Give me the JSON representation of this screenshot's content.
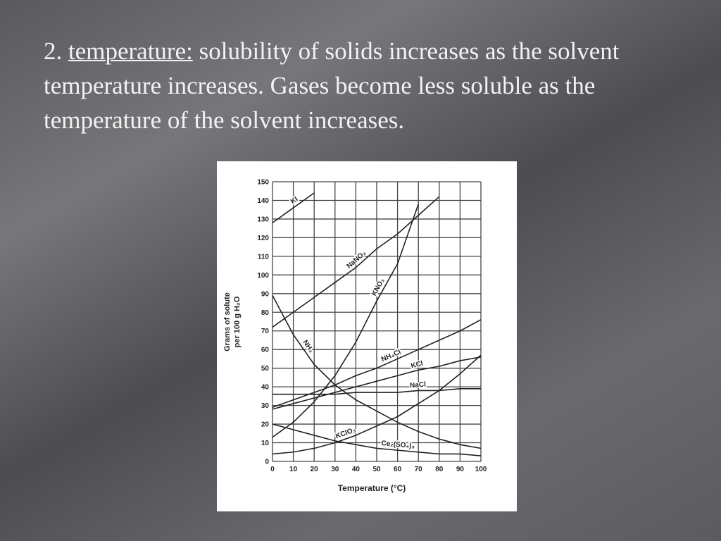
{
  "slide": {
    "number": "2.",
    "term": "temperature:",
    "body": "solubility of solids increases as the solvent temperature increases. Gases become less soluble as the temperature of the solvent increases."
  },
  "chart_data": {
    "type": "line",
    "x_label": "Temperature (°C)",
    "y_label": [
      "Grams of solute",
      "per 100 g H₂O"
    ],
    "x": [
      0,
      10,
      20,
      30,
      40,
      50,
      60,
      70,
      80,
      90,
      100
    ],
    "xlim": [
      0,
      100
    ],
    "xticks": [
      0,
      10,
      20,
      30,
      40,
      50,
      60,
      70,
      80,
      90,
      100
    ],
    "ylim": [
      0,
      150
    ],
    "yticks": [
      0,
      10,
      20,
      30,
      40,
      50,
      60,
      70,
      80,
      90,
      100,
      110,
      120,
      130,
      140,
      150
    ],
    "grid": true,
    "series": [
      {
        "name": "KI",
        "color": "#222222",
        "values": [
          128,
          136,
          144,
          null,
          null,
          null,
          null,
          null,
          null,
          null,
          null
        ]
      },
      {
        "name": "NaNO₃",
        "color": "#222222",
        "values": [
          72,
          80,
          88,
          96,
          104,
          114,
          122,
          132,
          142,
          null,
          null
        ]
      },
      {
        "name": "KNO₃",
        "color": "#222222",
        "values": [
          13,
          21,
          32,
          46,
          64,
          86,
          106,
          138,
          null,
          null,
          null
        ]
      },
      {
        "name": "NH₃",
        "color": "#222222",
        "values": [
          89,
          68,
          52,
          41,
          33,
          27,
          21,
          16,
          12,
          9,
          7
        ]
      },
      {
        "name": "NH₄Cl",
        "color": "#222222",
        "values": [
          29,
          33,
          37,
          41,
          46,
          50,
          55,
          60,
          65,
          70,
          76
        ]
      },
      {
        "name": "KCl",
        "color": "#222222",
        "values": [
          28,
          31,
          34,
          37,
          40,
          43,
          46,
          49,
          51,
          54,
          56
        ]
      },
      {
        "name": "NaCl",
        "color": "#222222",
        "values": [
          36,
          36,
          36,
          36,
          37,
          37,
          37,
          38,
          38,
          39,
          39
        ]
      },
      {
        "name": "KClO₃",
        "color": "#222222",
        "values": [
          4,
          5,
          7,
          10,
          14,
          19,
          24,
          31,
          38,
          47,
          57
        ]
      },
      {
        "name": "Ce₂(SO₄)₃",
        "color": "#222222",
        "values": [
          20,
          17,
          14,
          11,
          9,
          7,
          6,
          5,
          4,
          4,
          3
        ]
      }
    ]
  }
}
